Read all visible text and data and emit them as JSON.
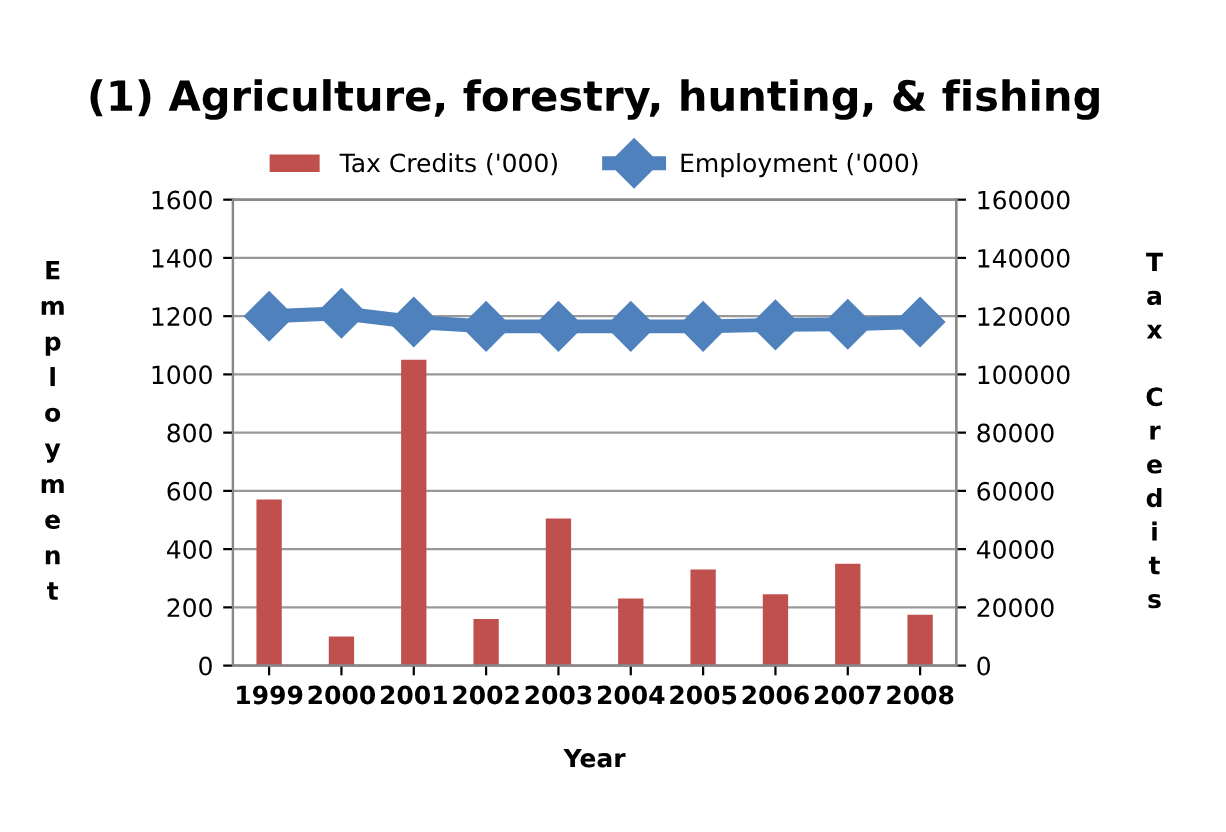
{
  "chart_data": {
    "type": "bar",
    "title": "(1) Agriculture, forestry, hunting, & fishing",
    "xlabel": "Year",
    "ylabel": "Employment",
    "y2label": "Tax Credits",
    "categories": [
      "1999",
      "2000",
      "2001",
      "2002",
      "2003",
      "2004",
      "2005",
      "2006",
      "2007",
      "2008"
    ],
    "series": [
      {
        "name": "Tax Credits ('000)",
        "axis": "y2",
        "color": "#c0504d",
        "values": [
          57000,
          10000,
          105000,
          16000,
          50500,
          23000,
          33000,
          24500,
          35000,
          17500
        ]
      },
      {
        "name": "Employment ('000)",
        "type": "line",
        "axis": "y",
        "color": "#4f81bd",
        "marker": "diamond",
        "values": [
          1200,
          1210,
          1180,
          1165,
          1165,
          1165,
          1165,
          1170,
          1172,
          1180
        ]
      }
    ],
    "ylim": [
      0,
      1600
    ],
    "yticks": [
      0,
      200,
      400,
      600,
      800,
      1000,
      1200,
      1400,
      1600
    ],
    "y2lim": [
      0,
      160000
    ],
    "y2ticks": [
      0,
      20000,
      40000,
      60000,
      80000,
      100000,
      120000,
      140000,
      160000
    ],
    "grid": "y",
    "legend": "top"
  }
}
